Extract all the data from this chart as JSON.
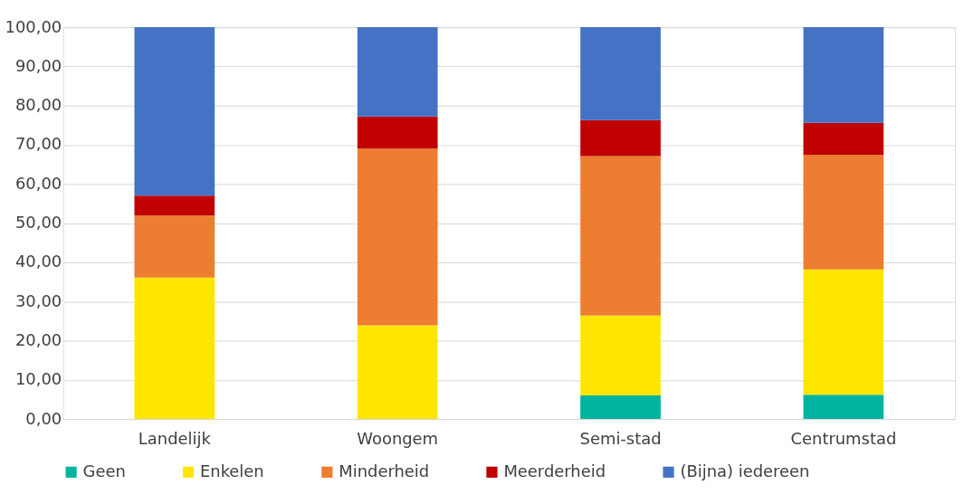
{
  "chart_data": {
    "type": "bar",
    "stacked": true,
    "categories": [
      "Landelijk",
      "Woongem",
      "Semi-stad",
      "Centrumstad"
    ],
    "series": [
      {
        "name": "Geen",
        "color": "#00b4a0",
        "values": [
          0,
          0,
          6.0,
          6.2
        ]
      },
      {
        "name": "Enkelen",
        "color": "#ffe600",
        "values": [
          36.1,
          23.9,
          20.4,
          32.0
        ]
      },
      {
        "name": "Minderheid",
        "color": "#ed7d31",
        "values": [
          15.9,
          45.1,
          40.7,
          29.2
        ]
      },
      {
        "name": "Meerderheid",
        "color": "#c00000",
        "values": [
          5.0,
          8.2,
          9.2,
          8.2
        ]
      },
      {
        "name": "(Bijna) iedereen",
        "color": "#4472c4",
        "values": [
          43.0,
          22.8,
          23.7,
          24.4
        ]
      }
    ],
    "ylim": [
      0,
      100
    ],
    "yticks": [
      {
        "value": 0,
        "label": "0,00"
      },
      {
        "value": 10,
        "label": "10,00"
      },
      {
        "value": 20,
        "label": "20,00"
      },
      {
        "value": 30,
        "label": "30,00"
      },
      {
        "value": 40,
        "label": "40,00"
      },
      {
        "value": 50,
        "label": "50,00"
      },
      {
        "value": 60,
        "label": "60,00"
      },
      {
        "value": 70,
        "label": "70,00"
      },
      {
        "value": 80,
        "label": "80,00"
      },
      {
        "value": 90,
        "label": "90,00"
      },
      {
        "value": 100,
        "label": "100,00"
      }
    ],
    "grid": "y",
    "legend": "bottom"
  }
}
